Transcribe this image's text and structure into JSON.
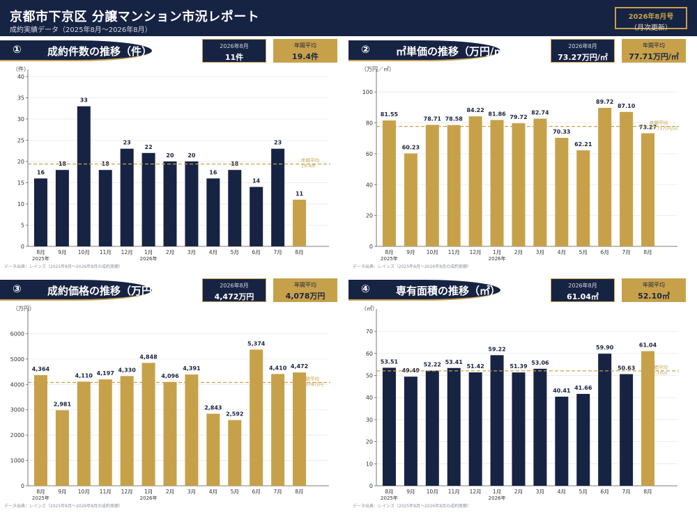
{
  "header": {
    "title": "京都市下京区 分譲マンション市況レポート",
    "subtitle": "成約実績データ（2025年8月〜2026年8月）",
    "issue_month": "2026年8月号",
    "issue_note": "（月次更新）"
  },
  "colors": {
    "navy": "#172343",
    "gold": "#c7a14a",
    "grid": "#e9e9ee",
    "avg_line": "#c7a14a"
  },
  "months": [
    "8月",
    "9月",
    "10月",
    "11月",
    "12月",
    "1月",
    "2月",
    "3月",
    "4月",
    "5月",
    "6月",
    "7月",
    "8月"
  ],
  "year_labels": [
    "2025年",
    "",
    "",
    "",
    "",
    "2026年",
    "",
    "",
    "",
    "",
    "",
    "",
    ""
  ],
  "source_note": "データ出典：レインズ（2025年8月〜2026年8月の成約実績）",
  "panels": [
    {
      "num": "①",
      "title": "成約件数の推移（件）",
      "kpi_month_label": "2026年8月",
      "kpi_month_value": "11件",
      "kpi_avg_label": "年間平均",
      "kpi_avg_value": "19.4件",
      "unit": "（件）",
      "avg_label_1": "年間平均",
      "avg_label_2": "19.4件",
      "ticks": [
        "0",
        "5",
        "10",
        "15",
        "20",
        "25",
        "30",
        "35",
        "40"
      ],
      "data_labels": [
        "16",
        "18",
        "33",
        "18",
        "23",
        "22",
        "20",
        "20",
        "16",
        "18",
        "14",
        "23",
        "11"
      ]
    },
    {
      "num": "②",
      "title": "㎡単価の推移（万円/㎡）",
      "kpi_month_label": "2026年8月",
      "kpi_month_value": "73.27万円/㎡",
      "kpi_avg_label": "年間平均",
      "kpi_avg_value": "77.71万円/㎡",
      "unit": "（万円／㎡）",
      "avg_label_1": "年間平均",
      "avg_label_2": "77.71万円/㎡",
      "ticks": [
        "0",
        "20",
        "40",
        "60",
        "80",
        "100"
      ],
      "data_labels": [
        "81.55",
        "60.23",
        "78.71",
        "78.58",
        "84.22",
        "81.86",
        "79.72",
        "82.74",
        "70.33",
        "62.21",
        "89.72",
        "87.10",
        "73.27"
      ]
    },
    {
      "num": "③",
      "title": "成約価格の推移（万円）",
      "kpi_month_label": "2026年8月",
      "kpi_month_value": "4,472万円",
      "kpi_avg_label": "年間平均",
      "kpi_avg_value": "4,078万円",
      "unit": "（万円）",
      "avg_label_1": "年間平均",
      "avg_label_2": "4,078万円",
      "ticks": [
        "0",
        "1000",
        "2000",
        "3000",
        "4000",
        "5000",
        "6000"
      ],
      "data_labels": [
        "4,364",
        "2,981",
        "4,110",
        "4,197",
        "4,330",
        "4,848",
        "4,096",
        "4,391",
        "2,843",
        "2,592",
        "5,374",
        "4,410",
        "4,472"
      ]
    },
    {
      "num": "④",
      "title": "専有面積の推移（㎡）",
      "kpi_month_label": "2026年8月",
      "kpi_month_value": "61.04㎡",
      "kpi_avg_label": "年間平均",
      "kpi_avg_value": "52.10㎡",
      "unit": "（㎡）",
      "avg_label_1": "年間平均",
      "avg_label_2": "52.10㎡",
      "ticks": [
        "0",
        "10",
        "20",
        "30",
        "40",
        "50",
        "60",
        "70"
      ],
      "data_labels": [
        "53.51",
        "49.49",
        "52.22",
        "53.41",
        "51.42",
        "59.22",
        "51.39",
        "53.06",
        "40.41",
        "41.66",
        "59.90",
        "50.63",
        "61.04"
      ]
    }
  ],
  "chart_data": [
    {
      "type": "bar",
      "title": "成約件数の推移（件）",
      "ylabel": "（件）",
      "categories": [
        "8月",
        "9月",
        "10月",
        "11月",
        "12月",
        "1月",
        "2月",
        "3月",
        "4月",
        "5月",
        "6月",
        "7月",
        "8月"
      ],
      "values": [
        16,
        18,
        33,
        18,
        23,
        22,
        20,
        20,
        16,
        18,
        14,
        23,
        11
      ],
      "bar_colors": [
        "#172343",
        "#172343",
        "#172343",
        "#172343",
        "#172343",
        "#172343",
        "#172343",
        "#172343",
        "#172343",
        "#172343",
        "#172343",
        "#172343",
        "#c7a14a"
      ],
      "average": 19.4,
      "ylim": [
        0,
        40
      ],
      "grid": true
    },
    {
      "type": "bar",
      "title": "㎡単価の推移（万円/㎡）",
      "ylabel": "（万円／㎡）",
      "categories": [
        "8月",
        "9月",
        "10月",
        "11月",
        "12月",
        "1月",
        "2月",
        "3月",
        "4月",
        "5月",
        "6月",
        "7月",
        "8月"
      ],
      "values": [
        81.55,
        60.23,
        78.71,
        78.58,
        84.22,
        81.86,
        79.72,
        82.74,
        70.33,
        62.21,
        89.72,
        87.1,
        73.27
      ],
      "bar_colors": [
        "#c7a14a",
        "#c7a14a",
        "#c7a14a",
        "#c7a14a",
        "#c7a14a",
        "#c7a14a",
        "#c7a14a",
        "#c7a14a",
        "#c7a14a",
        "#c7a14a",
        "#c7a14a",
        "#c7a14a",
        "#c7a14a"
      ],
      "average": 77.71,
      "ylim": [
        0,
        110
      ],
      "grid": true
    },
    {
      "type": "bar",
      "title": "成約価格の推移（万円）",
      "ylabel": "（万円）",
      "categories": [
        "8月",
        "9月",
        "10月",
        "11月",
        "12月",
        "1月",
        "2月",
        "3月",
        "4月",
        "5月",
        "6月",
        "7月",
        "8月"
      ],
      "values": [
        4364,
        2981,
        4110,
        4197,
        4330,
        4848,
        4096,
        4391,
        2843,
        2592,
        5374,
        4410,
        4472
      ],
      "bar_colors": [
        "#c7a14a",
        "#c7a14a",
        "#c7a14a",
        "#c7a14a",
        "#c7a14a",
        "#c7a14a",
        "#c7a14a",
        "#c7a14a",
        "#c7a14a",
        "#c7a14a",
        "#c7a14a",
        "#c7a14a",
        "#c7a14a"
      ],
      "average": 4078,
      "ylim": [
        0,
        6700
      ],
      "grid": true
    },
    {
      "type": "bar",
      "title": "専有面積の推移（㎡）",
      "ylabel": "（㎡）",
      "categories": [
        "8月",
        "9月",
        "10月",
        "11月",
        "12月",
        "1月",
        "2月",
        "3月",
        "4月",
        "5月",
        "6月",
        "7月",
        "8月"
      ],
      "values": [
        53.51,
        49.49,
        52.22,
        53.41,
        51.42,
        59.22,
        51.39,
        53.06,
        40.41,
        41.66,
        59.9,
        50.63,
        61.04
      ],
      "bar_colors": [
        "#172343",
        "#172343",
        "#172343",
        "#172343",
        "#172343",
        "#172343",
        "#172343",
        "#172343",
        "#172343",
        "#172343",
        "#172343",
        "#172343",
        "#c7a14a"
      ],
      "average": 52.1,
      "ylim": [
        0,
        77
      ],
      "grid": true
    }
  ]
}
